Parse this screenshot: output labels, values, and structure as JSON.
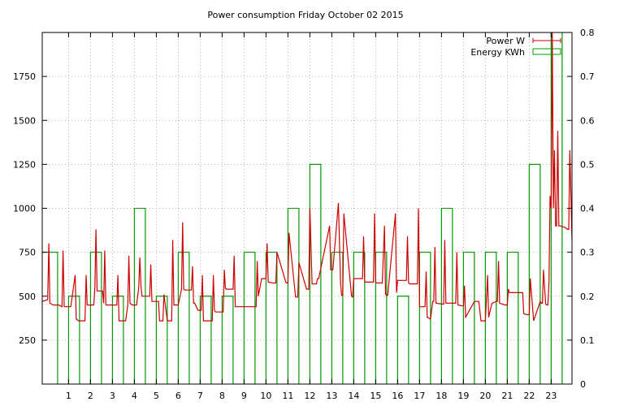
{
  "chart_data": {
    "type": "line",
    "title": "Power consumption Friday October 02 2015",
    "xlabel": "",
    "ylabel": "",
    "y2label": "",
    "xlim": [
      -0.2,
      23.95
    ],
    "ylim": [
      0,
      2000
    ],
    "y2lim": [
      0,
      0.8
    ],
    "x_ticks": [
      1,
      2,
      3,
      4,
      5,
      6,
      7,
      8,
      9,
      10,
      11,
      12,
      13,
      14,
      15,
      16,
      17,
      18,
      19,
      20,
      21,
      22,
      23
    ],
    "y_ticks": [
      250,
      500,
      750,
      1000,
      1250,
      1500,
      1750
    ],
    "y2_ticks": [
      0,
      0.1,
      0.2,
      0.3,
      0.4,
      0.5,
      0.6,
      0.7,
      0.8
    ],
    "grid": true,
    "legend_position": "top-right",
    "colors": {
      "power": "#cc0000",
      "energy": "#009900",
      "grid": "#a0a0a0",
      "axis": "#000000"
    },
    "series": [
      {
        "name": "Power W",
        "axis": "left",
        "style": "line",
        "x": [
          -0.2,
          0.05,
          0.1,
          0.15,
          0.3,
          0.55,
          0.7,
          0.75,
          0.8,
          0.85,
          1.1,
          1.3,
          1.35,
          1.4,
          1.45,
          1.5,
          1.75,
          1.8,
          1.85,
          1.9,
          2.0,
          2.15,
          2.2,
          2.25,
          2.3,
          2.55,
          2.6,
          2.65,
          2.7,
          2.9,
          3.2,
          3.25,
          3.3,
          3.35,
          3.5,
          3.6,
          3.7,
          3.75,
          3.8,
          3.9,
          4.1,
          4.2,
          4.25,
          4.3,
          4.35,
          4.5,
          4.7,
          4.75,
          4.8,
          4.9,
          5.1,
          5.15,
          5.2,
          5.3,
          5.35,
          5.5,
          5.7,
          5.75,
          5.8,
          5.9,
          6.0,
          6.15,
          6.2,
          6.25,
          6.3,
          6.6,
          6.65,
          6.7,
          6.75,
          6.9,
          7.05,
          7.1,
          7.15,
          7.3,
          7.55,
          7.6,
          7.65,
          7.7,
          7.9,
          8.05,
          8.1,
          8.15,
          8.2,
          8.5,
          8.55,
          8.6,
          8.65,
          9.2,
          9.5,
          9.55,
          9.6,
          9.65,
          9.8,
          9.95,
          10.0,
          10.05,
          10.1,
          10.3,
          10.4,
          10.45,
          10.5,
          10.9,
          10.95,
          11.0,
          11.05,
          11.35,
          11.4,
          11.45,
          11.5,
          11.85,
          11.9,
          11.95,
          12.0,
          12.1,
          12.25,
          12.3,
          12.35,
          12.4,
          12.9,
          12.95,
          13.0,
          13.05,
          13.3,
          13.4,
          13.45,
          13.5,
          13.55,
          13.9,
          13.95,
          14.0,
          14.05,
          14.3,
          14.4,
          14.45,
          14.5,
          14.55,
          14.9,
          14.95,
          15.0,
          15.05,
          15.3,
          15.4,
          15.45,
          15.5,
          15.55,
          15.9,
          15.95,
          16.0,
          16.05,
          16.4,
          16.45,
          16.5,
          16.55,
          16.9,
          16.95,
          17.0,
          17.05,
          17.2,
          17.25,
          17.3,
          17.35,
          17.5,
          17.6,
          17.65,
          17.7,
          17.75,
          18.05,
          18.1,
          18.15,
          18.2,
          18.6,
          18.65,
          18.7,
          18.75,
          18.95,
          19.0,
          19.05,
          19.1,
          19.5,
          19.6,
          19.65,
          19.7,
          19.8,
          19.95,
          20.0,
          20.1,
          20.15,
          20.3,
          20.5,
          20.55,
          20.6,
          20.65,
          20.9,
          21.0,
          21.05,
          21.1,
          21.6,
          21.65,
          21.7,
          21.75,
          21.9,
          21.95,
          22.0,
          22.05,
          22.2,
          22.5,
          22.55,
          22.6,
          22.65,
          22.75,
          22.8,
          22.85,
          22.9,
          22.95,
          23.0,
          23.05,
          23.1,
          23.15,
          23.2,
          23.25,
          23.3,
          23.35,
          23.4,
          23.65,
          23.75,
          23.8,
          23.85,
          23.95
        ],
        "y": [
          470,
          480,
          800,
          460,
          450,
          450,
          440,
          760,
          440,
          440,
          440,
          620,
          370,
          365,
          360,
          360,
          360,
          620,
          450,
          450,
          450,
          450,
          550,
          880,
          530,
          530,
          460,
          760,
          450,
          450,
          450,
          620,
          360,
          360,
          360,
          360,
          450,
          730,
          460,
          450,
          450,
          550,
          720,
          560,
          500,
          500,
          500,
          680,
          470,
          470,
          470,
          360,
          360,
          360,
          510,
          360,
          360,
          820,
          450,
          450,
          450,
          540,
          920,
          540,
          535,
          535,
          670,
          460,
          460,
          420,
          420,
          620,
          360,
          360,
          360,
          620,
          420,
          410,
          410,
          410,
          650,
          545,
          540,
          540,
          730,
          440,
          440,
          440,
          440,
          440,
          700,
          500,
          600,
          600,
          600,
          800,
          580,
          575,
          575,
          575,
          750,
          580,
          575,
          575,
          860,
          495,
          495,
          495,
          690,
          540,
          540,
          540,
          1000,
          570,
          570,
          570,
          600,
          600,
          900,
          650,
          650,
          650,
          1030,
          570,
          505,
          505,
          970,
          500,
          495,
          600,
          600,
          600,
          600,
          840,
          580,
          580,
          580,
          970,
          580,
          575,
          575,
          900,
          510,
          505,
          505,
          970,
          520,
          590,
          590,
          590,
          840,
          575,
          570,
          570,
          1000,
          440,
          440,
          440,
          440,
          640,
          380,
          370,
          470,
          470,
          780,
          460,
          455,
          455,
          820,
          460,
          460,
          460,
          750,
          450,
          445,
          445,
          560,
          380,
          470,
          470,
          470,
          470,
          360,
          360,
          360,
          620,
          380,
          460,
          470,
          470,
          700,
          460,
          450,
          450,
          540,
          520,
          520,
          520,
          520,
          400,
          395,
          395,
          395,
          600,
          360,
          470,
          460,
          460,
          650,
          455,
          450,
          450,
          580,
          1070,
          1000,
          2000,
          1000,
          1330,
          900,
          900,
          1440,
          900,
          900,
          890,
          880,
          880,
          1330,
          820
        ],
        "color": "#cc0000"
      },
      {
        "name": "Energy KWh",
        "axis": "right",
        "style": "step-boxes",
        "x": [
          -0.2,
          0.5,
          1.0,
          1.5,
          2.0,
          2.5,
          3.0,
          3.5,
          4.0,
          4.5,
          5.0,
          5.5,
          6.0,
          6.5,
          7.0,
          7.5,
          8.0,
          8.5,
          9.0,
          9.5,
          10.0,
          10.5,
          11.0,
          11.5,
          12.0,
          12.5,
          13.0,
          13.5,
          14.0,
          14.5,
          15.0,
          15.5,
          16.0,
          16.5,
          17.0,
          17.5,
          18.0,
          18.5,
          19.0,
          19.5,
          20.0,
          20.5,
          21.0,
          21.5,
          22.0,
          22.5,
          23.0,
          23.5
        ],
        "y": [
          0.3,
          0.0,
          0.2,
          0.0,
          0.3,
          0.0,
          0.2,
          0.0,
          0.4,
          0.0,
          0.2,
          0.0,
          0.3,
          0.0,
          0.2,
          0.0,
          0.2,
          0.0,
          0.3,
          0.0,
          0.3,
          0.0,
          0.4,
          0.0,
          0.5,
          0.0,
          0.3,
          0.0,
          0.3,
          0.0,
          0.3,
          0.0,
          0.2,
          0.0,
          0.3,
          0.0,
          0.4,
          0.0,
          0.3,
          0.0,
          0.3,
          0.0,
          0.3,
          0.0,
          0.5,
          0.0,
          0.8,
          0.0
        ],
        "color": "#009900"
      }
    ]
  }
}
